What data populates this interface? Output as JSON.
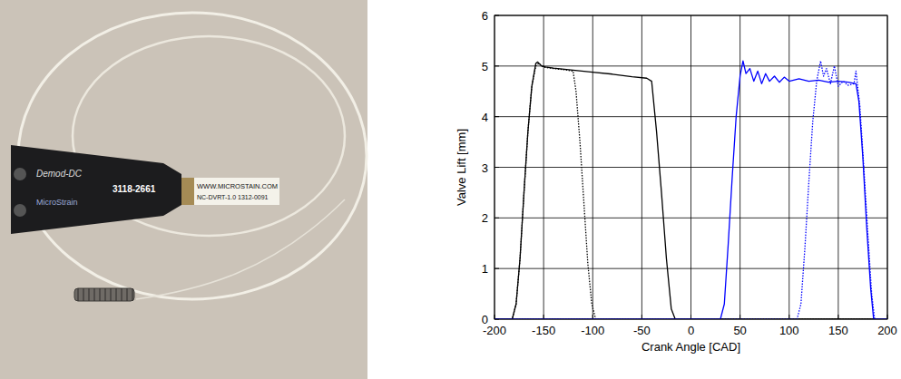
{
  "chart_data": {
    "type": "line",
    "x_label": "Crank Angle [CAD]",
    "y_label": "Valve Lift [mm]",
    "xlim": [
      -200,
      200
    ],
    "xticks": [
      -200,
      -150,
      -100,
      -50,
      0,
      50,
      100,
      150,
      200
    ],
    "ylim": [
      0,
      6
    ],
    "yticks": [
      0,
      1,
      2,
      3,
      4,
      5,
      6
    ],
    "grid": true,
    "series": [
      {
        "color": "#000000",
        "line_style": "solid",
        "x": [
          -200,
          -182,
          -178,
          -174,
          -170,
          -166,
          -162,
          -158,
          -156,
          -152,
          -148,
          -140,
          -120,
          -100,
          -80,
          -60,
          -45,
          -40,
          -35,
          -30,
          -25,
          -20,
          -16,
          0,
          200
        ],
        "values": [
          0,
          0,
          0.3,
          1.2,
          2.5,
          3.7,
          4.6,
          5.05,
          5.08,
          5.0,
          4.98,
          4.96,
          4.92,
          4.88,
          4.84,
          4.79,
          4.76,
          4.7,
          3.7,
          2.5,
          1.2,
          0.2,
          0,
          0,
          0
        ]
      },
      {
        "color": "#000000",
        "line_style": "dotted",
        "x": [
          -200,
          -182,
          -178,
          -174,
          -170,
          -166,
          -162,
          -158,
          -155,
          -150,
          -140,
          -130,
          -120,
          -117,
          -113,
          -109,
          -105,
          -101,
          -97,
          200
        ],
        "values": [
          0,
          0,
          0.3,
          1.2,
          2.5,
          3.7,
          4.6,
          5.0,
          5.05,
          4.98,
          4.95,
          4.93,
          4.9,
          4.5,
          3.5,
          2.3,
          1.1,
          0.3,
          0,
          0
        ]
      },
      {
        "color": "#0000ff",
        "line_style": "solid",
        "x": [
          -200,
          30,
          34,
          38,
          42,
          46,
          50,
          53,
          56,
          60,
          64,
          68,
          72,
          76,
          80,
          85,
          90,
          95,
          100,
          110,
          120,
          130,
          140,
          150,
          160,
          168,
          171,
          175,
          179,
          183,
          186,
          200
        ],
        "values": [
          0,
          0,
          0.3,
          1.5,
          2.8,
          4.0,
          4.8,
          5.1,
          4.85,
          4.95,
          4.7,
          4.9,
          4.65,
          4.85,
          4.7,
          4.8,
          4.68,
          4.78,
          4.7,
          4.75,
          4.7,
          4.72,
          4.68,
          4.7,
          4.68,
          4.65,
          4.3,
          3.2,
          1.8,
          0.6,
          0,
          0
        ]
      },
      {
        "color": "#0000ff",
        "line_style": "dotted",
        "x": [
          -200,
          108,
          112,
          116,
          120,
          124,
          128,
          132,
          135,
          138,
          142,
          146,
          150,
          155,
          160,
          166,
          168,
          172,
          176,
          180,
          184,
          187,
          200
        ],
        "values": [
          0,
          0,
          0.3,
          1.4,
          2.7,
          3.9,
          4.7,
          5.1,
          4.8,
          4.95,
          4.65,
          5.0,
          4.6,
          4.7,
          4.62,
          4.65,
          4.9,
          4.2,
          3.0,
          1.7,
          0.5,
          0,
          0
        ]
      }
    ]
  },
  "photo": {
    "labels": [
      "Demod-DC",
      "MicroStrain",
      "3118-2661",
      "WWW.MICROSTAIN.COM",
      "NC-DVRT-1.0 1312-0091"
    ]
  }
}
